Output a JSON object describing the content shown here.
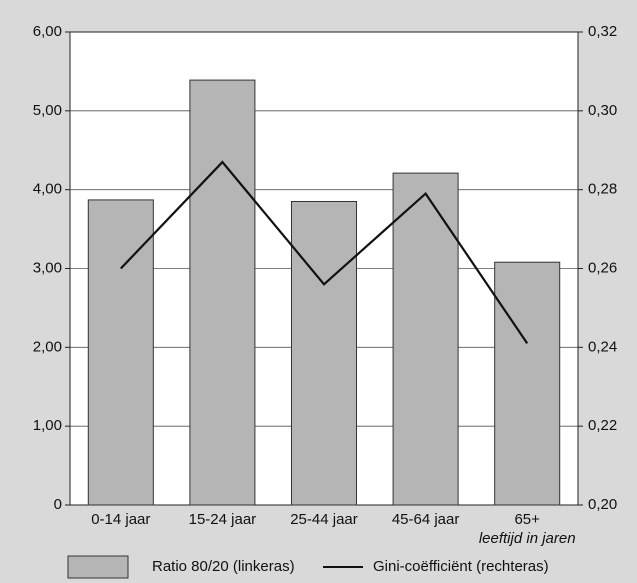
{
  "chart_data": {
    "type": "bar",
    "categories": [
      "0-14 jaar",
      "15-24 jaar",
      "25-44 jaar",
      "45-64 jaar",
      "65+"
    ],
    "xlabel": "leeftijd in jaren",
    "series": [
      {
        "name": "Ratio 80/20 (linkeras)",
        "type": "bar",
        "color": "#b5b5b5",
        "values": [
          3.87,
          5.39,
          3.85,
          4.21,
          3.08
        ]
      },
      {
        "name": "Gini-coëfficiënt (rechteras)",
        "type": "line",
        "axis": "y2",
        "color": "#111111",
        "values": [
          0.26,
          0.287,
          0.256,
          0.279,
          0.241
        ]
      }
    ],
    "ylim": [
      0,
      6
    ],
    "yticks": [
      0,
      {
        "value": 1,
        "label": "1,00"
      },
      {
        "value": 2,
        "label": "2,00"
      },
      {
        "value": 3,
        "label": "3,00"
      },
      {
        "value": 4,
        "label": "4,00"
      },
      {
        "value": 5,
        "label": "5,00"
      },
      {
        "value": 6,
        "label": "6,00"
      }
    ],
    "y2lim": [
      0.2,
      0.32
    ],
    "y2ticks": [
      {
        "value": 0.2,
        "label": "0,20"
      },
      {
        "value": 0.22,
        "label": "0,22"
      },
      {
        "value": 0.24,
        "label": "0,24"
      },
      {
        "value": 0.26,
        "label": "0,26"
      },
      {
        "value": 0.28,
        "label": "0,28"
      },
      {
        "value": 0.3,
        "label": "0,30"
      },
      {
        "value": 0.32,
        "label": "0,32"
      }
    ],
    "grid": true
  }
}
